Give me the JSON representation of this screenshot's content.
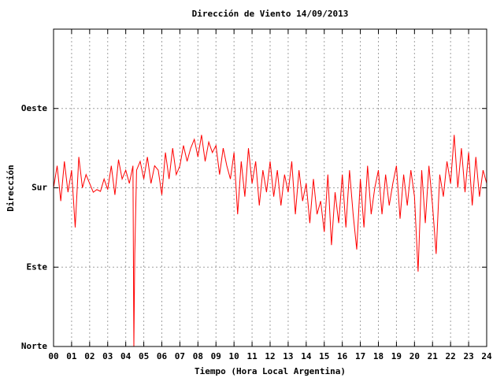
{
  "chart_data": {
    "type": "line",
    "title": "Dirección de Viento 14/09/2013",
    "x_label": "Tiempo (Hora Local Argentina)",
    "y_label": "Dirección",
    "color": "#ff0000",
    "grid": true,
    "xlim": [
      0,
      24
    ],
    "xticks": [
      {
        "value": 0,
        "label": "00"
      },
      {
        "value": 1,
        "label": "01"
      },
      {
        "value": 2,
        "label": "02"
      },
      {
        "value": 3,
        "label": "03"
      },
      {
        "value": 4,
        "label": "04"
      },
      {
        "value": 5,
        "label": "05"
      },
      {
        "value": 6,
        "label": "06"
      },
      {
        "value": 7,
        "label": "07"
      },
      {
        "value": 8,
        "label": "08"
      },
      {
        "value": 9,
        "label": "09"
      },
      10,
      11,
      12,
      13,
      14,
      15,
      16,
      17,
      18,
      19,
      20,
      21,
      22,
      23,
      24
    ],
    "ylim": [
      0,
      360
    ],
    "yticks": [
      {
        "value": 0,
        "label": "Norte"
      },
      {
        "value": 90,
        "label": "Este"
      },
      {
        "value": 180,
        "label": "Sur"
      },
      {
        "value": 270,
        "label": "Oeste"
      }
    ],
    "x": [
      0,
      0.2,
      0.4,
      0.6,
      0.8,
      1,
      1.2,
      1.4,
      1.6,
      1.8,
      2,
      2.2,
      2.4,
      2.6,
      2.8,
      3,
      3.2,
      3.4,
      3.6,
      3.8,
      4,
      4.2,
      4.4,
      4.45,
      4.5,
      4.6,
      4.8,
      5,
      5.2,
      5.4,
      5.6,
      5.8,
      6,
      6.2,
      6.4,
      6.6,
      6.8,
      7,
      7.2,
      7.4,
      7.6,
      7.8,
      8,
      8.2,
      8.4,
      8.6,
      8.8,
      9,
      9.2,
      9.4,
      9.6,
      9.8,
      10,
      10.2,
      10.4,
      10.6,
      10.8,
      11,
      11.2,
      11.4,
      11.6,
      11.8,
      12,
      12.2,
      12.4,
      12.6,
      12.8,
      13,
      13.2,
      13.4,
      13.6,
      13.8,
      14,
      14.2,
      14.4,
      14.6,
      14.8,
      15,
      15.2,
      15.4,
      15.6,
      15.8,
      16,
      16.2,
      16.4,
      16.6,
      16.8,
      17,
      17.2,
      17.4,
      17.6,
      17.8,
      18,
      18.2,
      18.4,
      18.6,
      18.8,
      19,
      19.2,
      19.4,
      19.6,
      19.8,
      20,
      20.2,
      20.4,
      20.6,
      20.8,
      21,
      21.2,
      21.4,
      21.6,
      21.8,
      22,
      22.2,
      22.4,
      22.6,
      22.8,
      23,
      23.2,
      23.4,
      23.6,
      23.8,
      24
    ],
    "values": [
      180,
      205,
      165,
      210,
      175,
      200,
      135,
      215,
      180,
      195,
      185,
      175,
      178,
      176,
      190,
      178,
      205,
      172,
      212,
      190,
      200,
      185,
      205,
      0,
      105,
      200,
      210,
      190,
      215,
      185,
      205,
      200,
      172,
      220,
      190,
      225,
      195,
      205,
      228,
      210,
      225,
      235,
      215,
      240,
      210,
      232,
      220,
      228,
      195,
      225,
      205,
      190,
      220,
      150,
      210,
      170,
      225,
      185,
      210,
      160,
      200,
      175,
      210,
      170,
      200,
      160,
      195,
      175,
      210,
      150,
      200,
      165,
      185,
      140,
      190,
      150,
      165,
      130,
      195,
      115,
      175,
      140,
      195,
      135,
      200,
      150,
      110,
      190,
      135,
      205,
      150,
      180,
      200,
      150,
      195,
      160,
      185,
      205,
      145,
      195,
      160,
      200,
      170,
      85,
      200,
      140,
      205,
      160,
      105,
      195,
      170,
      210,
      185,
      240,
      180,
      225,
      175,
      220,
      160,
      215,
      170,
      200,
      185
    ]
  }
}
